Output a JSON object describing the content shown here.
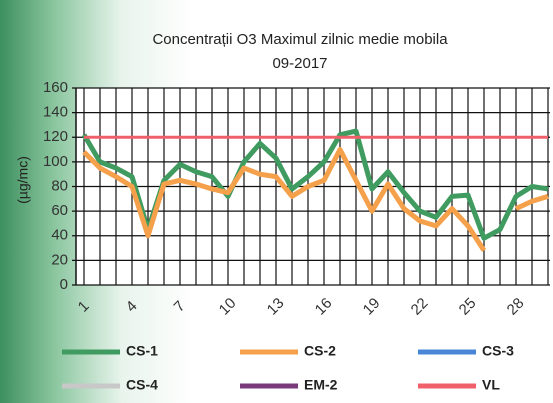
{
  "chart_data": {
    "type": "line",
    "title": "Concentrații O3 Maximul zilnic medie mobila",
    "subtitle": "09-2017",
    "y_label": "(µg/mc)",
    "categories": [
      "1",
      null,
      null,
      "4",
      null,
      null,
      "7",
      null,
      null,
      "10",
      null,
      null,
      "13",
      null,
      null,
      "16",
      null,
      null,
      "19",
      null,
      null,
      "22",
      null,
      null,
      "25",
      null,
      null,
      "28",
      null,
      null
    ],
    "series": [
      {
        "name": "CS-1",
        "color": "#3f9b5f",
        "values": [
          122,
          100,
          95,
          88,
          45,
          85,
          98,
          92,
          88,
          72,
          100,
          115,
          103,
          78,
          88,
          100,
          122,
          125,
          78,
          92,
          75,
          60,
          55,
          72,
          73,
          38,
          45,
          72,
          80,
          78
        ]
      },
      {
        "name": "CS-2",
        "color": "#f5a04a",
        "values": [
          108,
          95,
          88,
          80,
          40,
          82,
          85,
          82,
          78,
          75,
          95,
          90,
          88,
          72,
          80,
          85,
          110,
          85,
          60,
          82,
          62,
          52,
          48,
          62,
          48,
          28,
          null,
          62,
          68,
          72
        ]
      },
      {
        "name": "CS-3",
        "color": "#4a86d8",
        "values": [
          null,
          null,
          null,
          null,
          null,
          null,
          null,
          null,
          null,
          null,
          null,
          null,
          null,
          null,
          null,
          null,
          null,
          null,
          null,
          null,
          null,
          null,
          null,
          null,
          null,
          null,
          null,
          null,
          null,
          null
        ]
      },
      {
        "name": "CS-4",
        "color": "#c8c8c8",
        "values": [
          null,
          null,
          null,
          null,
          null,
          null,
          null,
          null,
          null,
          null,
          null,
          null,
          null,
          null,
          null,
          null,
          null,
          null,
          null,
          null,
          null,
          null,
          null,
          null,
          null,
          null,
          null,
          null,
          null,
          null
        ]
      },
      {
        "name": "EM-2",
        "color": "#7a3a7a",
        "values": [
          null,
          null,
          null,
          null,
          null,
          null,
          null,
          null,
          null,
          null,
          null,
          null,
          null,
          null,
          null,
          null,
          null,
          null,
          null,
          null,
          null,
          null,
          null,
          null,
          null,
          null,
          null,
          null,
          null,
          null
        ]
      },
      {
        "name": "VL",
        "color": "#f0606a",
        "values": [
          120,
          120,
          120,
          120,
          120,
          120,
          120,
          120,
          120,
          120,
          120,
          120,
          120,
          120,
          120,
          120,
          120,
          120,
          120,
          120,
          120,
          120,
          120,
          120,
          120,
          120,
          120,
          120,
          120,
          120
        ]
      }
    ],
    "ylim": [
      0,
      160
    ],
    "yticks": [
      0,
      20,
      40,
      60,
      80,
      100,
      120,
      140,
      160
    ],
    "grid": true
  }
}
